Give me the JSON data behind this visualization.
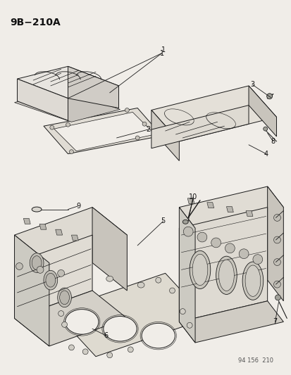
{
  "title": "9B−210A",
  "footer": "94 156  210",
  "bg_color": "#f0ede8",
  "line_color": "#1a1a1a",
  "label_color": "#111111",
  "title_fontsize": 10,
  "label_fontsize": 7,
  "footer_fontsize": 6,
  "fig_width": 4.14,
  "fig_height": 5.33,
  "dpi": 100
}
